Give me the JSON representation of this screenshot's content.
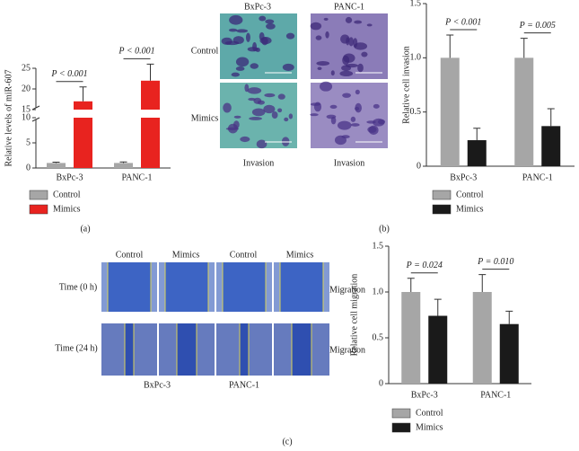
{
  "chart_data": [
    {
      "type": "bar",
      "y_label": "Relative levels of miR-607",
      "categories": [
        "BxPc-3",
        "PANC-1"
      ],
      "series": [
        {
          "name": "Control",
          "color": "#a6a6a6",
          "values": [
            1,
            1
          ],
          "errors": [
            0.15,
            0.2
          ]
        },
        {
          "name": "Mimics",
          "color": "#e8231f",
          "values": [
            17,
            22
          ],
          "errors": [
            3.5,
            4
          ]
        }
      ],
      "ylim": [
        0,
        25
      ],
      "ybreak": [
        10,
        15
      ],
      "yticks": [
        0,
        5,
        10,
        15,
        20,
        25
      ],
      "annotations": [
        "P < 0.001",
        "P < 0.001"
      ]
    },
    {
      "type": "bar",
      "y_label": "Relative cell invasion",
      "categories": [
        "BxPc-3",
        "PANC-1"
      ],
      "series": [
        {
          "name": "Control",
          "color": "#a6a6a6",
          "values": [
            1,
            1
          ],
          "errors": [
            0.21,
            0.18
          ]
        },
        {
          "name": "Mimics",
          "color": "#1a1a1a",
          "values": [
            0.24,
            0.37
          ],
          "errors": [
            0.11,
            0.16
          ]
        }
      ],
      "ylim": [
        0,
        1.5
      ],
      "yticks": [
        {
          "value": 0,
          "label": "0"
        },
        0.5,
        {
          "value": 1,
          "label": "1.0"
        },
        1.5
      ],
      "annotations": [
        "P < 0.001",
        "P = 0.005"
      ]
    },
    {
      "type": "bar",
      "y_label": "Relative cell migration",
      "categories": [
        "BxPc-3",
        "PANC-1"
      ],
      "series": [
        {
          "name": "Control",
          "color": "#a6a6a6",
          "values": [
            1,
            1
          ],
          "errors": [
            0.15,
            0.19
          ]
        },
        {
          "name": "Mimics",
          "color": "#1a1a1a",
          "values": [
            0.74,
            0.65
          ],
          "errors": [
            0.18,
            0.14
          ]
        }
      ],
      "ylim": [
        0,
        1.5
      ],
      "yticks": [
        {
          "value": 0,
          "label": "0"
        },
        0.5,
        {
          "value": 1,
          "label": "1.0"
        },
        1.5
      ],
      "annotations": [
        "P = 0.024",
        "P = 0.010"
      ]
    }
  ],
  "panel_labels": [
    "(a)",
    "(b)",
    "(c)"
  ],
  "invasion_images": {
    "columns": [
      "BxPc-3",
      "PANC-1"
    ],
    "rows": [
      "Control",
      "Mimics"
    ],
    "captions": [
      "Invasion",
      "Invasion"
    ]
  },
  "migration_images": {
    "columns": [
      "Control",
      "Mimics",
      "Control",
      "Mimics"
    ],
    "rows": [
      "Time (0 h)",
      "Time (24 h)"
    ],
    "row_captions": [
      "Migration",
      "Migration"
    ],
    "groups": [
      "BxPc-3",
      "PANC-1"
    ]
  }
}
